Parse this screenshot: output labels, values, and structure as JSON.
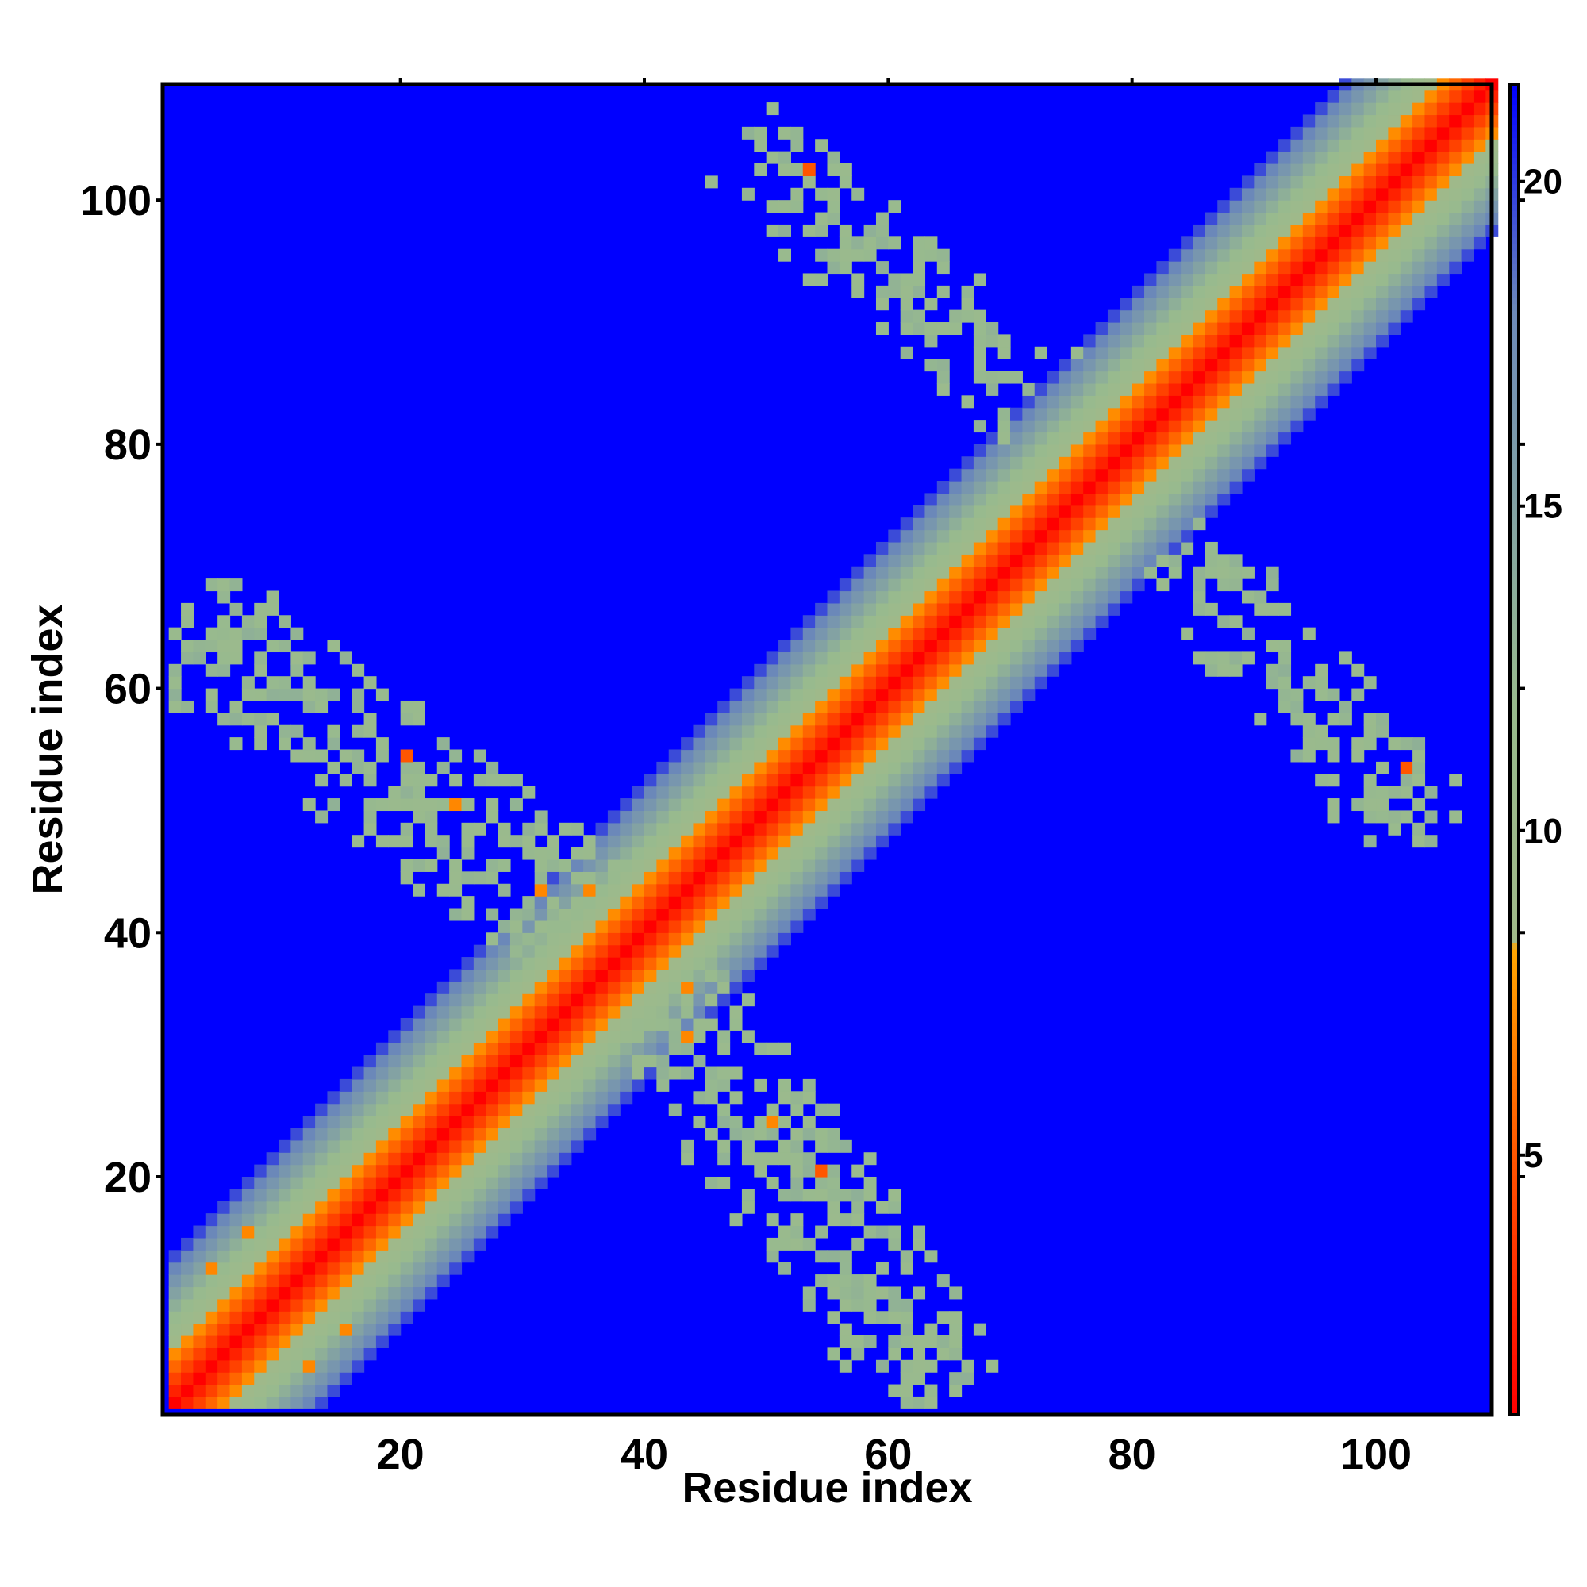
{
  "chart_data": {
    "type": "heatmap",
    "title": "",
    "xlabel": "Residue index",
    "ylabel": "Residue index",
    "n_residues": 109,
    "xlim": [
      1,
      109
    ],
    "ylim": [
      1,
      109
    ],
    "x_ticks": [
      20,
      40,
      60,
      80,
      100
    ],
    "y_ticks": [
      20,
      40,
      60,
      80,
      100
    ],
    "colorbar": {
      "range": [
        1,
        21.5
      ],
      "ticks": [
        5,
        10,
        15,
        20
      ],
      "stops": [
        {
          "value": 1,
          "color": "#ff0000"
        },
        {
          "value": 4.5,
          "color": "#ff4a00"
        },
        {
          "value": 8.2,
          "color": "#ffa500"
        },
        {
          "value": 8.3,
          "color": "#a0b98a"
        },
        {
          "value": 12,
          "color": "#98ba8e"
        },
        {
          "value": 18,
          "color": "#6d8ab8"
        },
        {
          "value": 21.5,
          "color": "#0000ff"
        }
      ]
    },
    "background_value": 22,
    "diagonal_band": {
      "value_at_diagonal": 1,
      "slope_per_residue": 1.55,
      "cutoff": 20
    },
    "contact_clusters": [
      {
        "from": [
          3,
          64
        ],
        "to": [
          35,
          40
        ],
        "value": 12,
        "density": 0.58,
        "half_width": 6
      },
      {
        "from": [
          64,
          3
        ],
        "to": [
          40,
          35
        ],
        "value": 12,
        "density": 0.58,
        "half_width": 6
      },
      {
        "from": [
          48,
          103
        ],
        "to": [
          71,
          84
        ],
        "value": 12,
        "density": 0.5,
        "half_width": 5
      },
      {
        "from": [
          103,
          48
        ],
        "to": [
          84,
          71
        ],
        "value": 12,
        "density": 0.5,
        "half_width": 5
      }
    ],
    "highlighted_cells": [
      {
        "x": 53,
        "y": 102,
        "value": 5
      },
      {
        "x": 102,
        "y": 53,
        "value": 5
      },
      {
        "x": 20,
        "y": 54,
        "value": 5
      },
      {
        "x": 54,
        "y": 20,
        "value": 5
      },
      {
        "x": 24,
        "y": 50,
        "value": 7
      },
      {
        "x": 50,
        "y": 24,
        "value": 7
      },
      {
        "x": 31,
        "y": 43,
        "value": 7
      },
      {
        "x": 43,
        "y": 31,
        "value": 7
      },
      {
        "x": 35,
        "y": 43,
        "value": 7
      },
      {
        "x": 43,
        "y": 35,
        "value": 7
      },
      {
        "x": 4,
        "y": 12,
        "value": 7
      },
      {
        "x": 12,
        "y": 4,
        "value": 7
      },
      {
        "x": 7,
        "y": 15,
        "value": 7
      },
      {
        "x": 15,
        "y": 7,
        "value": 7
      }
    ]
  }
}
